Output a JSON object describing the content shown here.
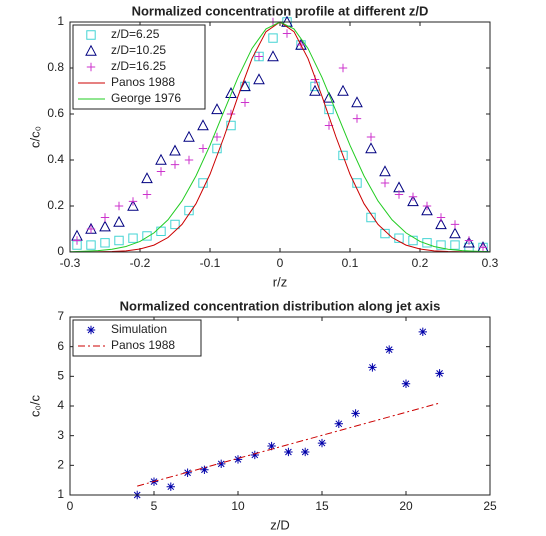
{
  "chart_data": [
    {
      "type": "scatter",
      "title": "Normalized concentration profile at different z/D",
      "x_label": "r/z",
      "y_label": "c/c₀",
      "xlim": [
        -0.3,
        0.3
      ],
      "xticks": [
        -0.3,
        -0.2,
        -0.1,
        0,
        0.1,
        0.2,
        0.3
      ],
      "ylim": [
        0,
        1
      ],
      "yticks": [
        0,
        0.2,
        0.4,
        0.6,
        0.8,
        1
      ],
      "legend": "upper left",
      "series": [
        {
          "name": "z/D=6.25",
          "color": "#44d4d4",
          "marker": "square",
          "x": [
            -0.29,
            -0.27,
            -0.25,
            -0.23,
            -0.21,
            -0.19,
            -0.17,
            -0.15,
            -0.13,
            -0.11,
            -0.09,
            -0.07,
            -0.05,
            -0.03,
            -0.01,
            0.01,
            0.03,
            0.05,
            0.07,
            0.09,
            0.11,
            0.13,
            0.15,
            0.17,
            0.19,
            0.21,
            0.23,
            0.25,
            0.27,
            0.29
          ],
          "values": [
            0.03,
            0.03,
            0.04,
            0.05,
            0.06,
            0.07,
            0.09,
            0.12,
            0.18,
            0.3,
            0.45,
            0.55,
            0.72,
            0.85,
            0.93,
            1.0,
            0.9,
            0.72,
            0.62,
            0.42,
            0.3,
            0.15,
            0.08,
            0.06,
            0.05,
            0.04,
            0.03,
            0.03,
            0.02,
            0.02
          ]
        },
        {
          "name": "z/D=10.25",
          "color": "#000080",
          "marker": "triangle",
          "x": [
            -0.29,
            -0.27,
            -0.25,
            -0.23,
            -0.21,
            -0.19,
            -0.17,
            -0.15,
            -0.13,
            -0.11,
            -0.09,
            -0.07,
            -0.05,
            -0.03,
            -0.01,
            0.01,
            0.03,
            0.05,
            0.07,
            0.09,
            0.11,
            0.13,
            0.15,
            0.17,
            0.19,
            0.21,
            0.23,
            0.25,
            0.27,
            0.29
          ],
          "values": [
            0.07,
            0.1,
            0.11,
            0.13,
            0.2,
            0.32,
            0.4,
            0.44,
            0.5,
            0.55,
            0.62,
            0.69,
            0.72,
            0.75,
            0.85,
            1.0,
            0.9,
            0.7,
            0.67,
            0.7,
            0.65,
            0.45,
            0.35,
            0.28,
            0.22,
            0.18,
            0.12,
            0.08,
            0.04,
            0.02
          ]
        },
        {
          "name": "z/D=16.25",
          "color": "#cc33cc",
          "marker": "plus",
          "x": [
            -0.29,
            -0.27,
            -0.25,
            -0.23,
            -0.21,
            -0.19,
            -0.17,
            -0.15,
            -0.13,
            -0.11,
            -0.09,
            -0.07,
            -0.05,
            -0.03,
            -0.01,
            0.01,
            0.03,
            0.05,
            0.07,
            0.09,
            0.11,
            0.13,
            0.15,
            0.17,
            0.19,
            0.21,
            0.23,
            0.25,
            0.27,
            0.29
          ],
          "values": [
            0.05,
            0.1,
            0.15,
            0.2,
            0.22,
            0.25,
            0.35,
            0.38,
            0.4,
            0.45,
            0.5,
            0.6,
            0.65,
            0.85,
            1.0,
            0.95,
            0.9,
            0.75,
            0.55,
            0.8,
            0.58,
            0.5,
            0.3,
            0.25,
            0.24,
            0.2,
            0.15,
            0.12,
            0.05,
            0.02
          ]
        },
        {
          "name": "Panos 1988",
          "color": "#cc0000",
          "line": "solid",
          "x": [
            -0.3,
            -0.28,
            -0.26,
            -0.24,
            -0.22,
            -0.2,
            -0.18,
            -0.16,
            -0.14,
            -0.12,
            -0.1,
            -0.08,
            -0.06,
            -0.04,
            -0.02,
            0,
            0.02,
            0.04,
            0.06,
            0.08,
            0.1,
            0.12,
            0.14,
            0.16,
            0.18,
            0.2,
            0.22,
            0.24,
            0.26,
            0.28,
            0.3
          ],
          "values": [
            0.0,
            0.0,
            0.001,
            0.002,
            0.005,
            0.013,
            0.03,
            0.063,
            0.12,
            0.21,
            0.338,
            0.5,
            0.677,
            0.841,
            0.958,
            1.0,
            0.958,
            0.841,
            0.677,
            0.5,
            0.338,
            0.21,
            0.12,
            0.063,
            0.03,
            0.013,
            0.005,
            0.002,
            0.001,
            0.0,
            0.0
          ]
        },
        {
          "name": "George 1976",
          "color": "#22cc22",
          "line": "solid",
          "x": [
            -0.3,
            -0.28,
            -0.26,
            -0.24,
            -0.22,
            -0.2,
            -0.18,
            -0.16,
            -0.14,
            -0.12,
            -0.1,
            -0.08,
            -0.06,
            -0.04,
            -0.02,
            0,
            0.02,
            0.04,
            0.06,
            0.08,
            0.1,
            0.12,
            0.14,
            0.16,
            0.18,
            0.2,
            0.22,
            0.24,
            0.26,
            0.28,
            0.3
          ],
          "values": [
            0.001,
            0.003,
            0.006,
            0.012,
            0.024,
            0.046,
            0.083,
            0.14,
            0.222,
            0.331,
            0.464,
            0.612,
            0.759,
            0.885,
            0.97,
            1.0,
            0.97,
            0.885,
            0.759,
            0.612,
            0.464,
            0.331,
            0.222,
            0.14,
            0.083,
            0.046,
            0.024,
            0.012,
            0.006,
            0.003,
            0.001
          ]
        }
      ]
    },
    {
      "type": "scatter",
      "title": "Normalized concentration distribution along jet axis",
      "x_label": "z/D",
      "y_label": "c₀/c",
      "xlim": [
        0,
        25
      ],
      "xticks": [
        0,
        5,
        10,
        15,
        20,
        25
      ],
      "ylim": [
        1,
        7
      ],
      "yticks": [
        1,
        2,
        3,
        4,
        5,
        6,
        7
      ],
      "legend": "upper left",
      "series": [
        {
          "name": "Simulation",
          "color": "#0000aa",
          "marker": "asterisk",
          "x": [
            4,
            5,
            6,
            7,
            8,
            9,
            10,
            11,
            12,
            13,
            14,
            15,
            16,
            17,
            18,
            19,
            20,
            21,
            22
          ],
          "values": [
            1.0,
            1.45,
            1.28,
            1.75,
            1.85,
            2.05,
            2.2,
            2.35,
            2.65,
            2.45,
            2.45,
            2.75,
            3.4,
            3.75,
            5.3,
            5.9,
            4.75,
            6.5,
            5.1
          ]
        },
        {
          "name": "Panos 1988",
          "color": "#cc0000",
          "line": "dashdot",
          "x": [
            4,
            22
          ],
          "values": [
            1.3,
            4.1
          ]
        }
      ]
    }
  ]
}
